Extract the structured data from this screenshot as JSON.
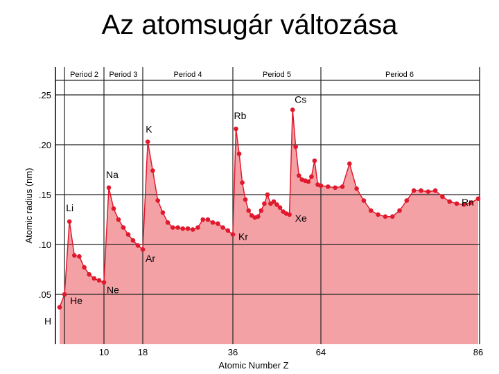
{
  "title": "Az atomsugár változása",
  "chart_data": {
    "type": "area",
    "xlabel": "Atomic Number Z",
    "ylabel": "Atomic radius (nm)",
    "xlim": [
      1,
      86
    ],
    "ylim": [
      0,
      0.28
    ],
    "xticks": [
      10,
      18,
      36,
      64,
      86
    ],
    "yticks": [
      0.05,
      0.1,
      0.15,
      0.2,
      0.25
    ],
    "ytick_labels": [
      ".05",
      ".10",
      ".15",
      ".20",
      ".25"
    ],
    "grid": "horizontal + vertical period boundaries",
    "periods": [
      {
        "label": "Period 2",
        "from": 2,
        "to": 10
      },
      {
        "label": "Period 3",
        "from": 10,
        "to": 18
      },
      {
        "label": "Period 4",
        "from": 18,
        "to": 36
      },
      {
        "label": "Period 5",
        "from": 36,
        "to": 64
      },
      {
        "label": "Period 6",
        "from": 64,
        "to": 86
      }
    ],
    "colors": {
      "fill": "#f4a1a6",
      "line": "#e0192d",
      "point": "#e0192d",
      "grid": "#222222"
    },
    "series": [
      {
        "x": [
          1,
          2,
          3,
          4,
          5,
          6,
          7,
          8,
          9,
          10,
          11,
          12,
          13,
          14,
          15,
          16,
          17,
          18,
          19,
          20,
          21,
          22,
          23,
          24,
          25,
          26,
          27,
          28,
          29,
          30,
          31,
          32,
          33,
          34,
          35,
          36,
          37,
          38,
          39,
          40,
          41,
          42,
          43,
          44,
          45,
          46,
          47,
          48,
          49,
          50,
          51,
          52,
          53,
          54,
          55,
          56,
          57,
          58,
          59,
          60,
          61,
          62,
          63,
          64,
          65,
          66,
          67,
          68,
          69,
          70,
          71,
          72,
          73,
          74,
          75,
          76,
          77,
          78,
          79,
          80,
          81,
          82,
          83,
          84,
          85,
          86
        ],
        "y": [
          0.037,
          0.05,
          0.123,
          0.089,
          0.088,
          0.077,
          0.07,
          0.066,
          0.064,
          0.062,
          0.157,
          0.136,
          0.125,
          0.117,
          0.11,
          0.104,
          0.099,
          0.095,
          0.203,
          0.174,
          0.144,
          0.132,
          0.122,
          0.117,
          0.117,
          0.116,
          0.116,
          0.115,
          0.117,
          0.125,
          0.125,
          0.122,
          0.121,
          0.117,
          0.114,
          0.11,
          0.216,
          0.191,
          0.162,
          0.145,
          0.134,
          0.129,
          0.127,
          0.128,
          0.134,
          0.141,
          0.15,
          0.141,
          0.143,
          0.14,
          0.137,
          0.133,
          0.131,
          0.13,
          0.235,
          0.198,
          0.169,
          0.165,
          0.164,
          0.163,
          0.168,
          0.184,
          0.16,
          0.159,
          0.158,
          0.157,
          0.158,
          0.181,
          0.156,
          0.144,
          0.134,
          0.13,
          0.128,
          0.128,
          0.134,
          0.144,
          0.154,
          0.154,
          0.153,
          0.154,
          0.148,
          0.143,
          0.141,
          0.14,
          0.142,
          0.146
        ]
      }
    ],
    "annotations": [
      {
        "text": "H",
        "z": 1
      },
      {
        "text": "He",
        "z": 2
      },
      {
        "text": "Li",
        "z": 3
      },
      {
        "text": "Ne",
        "z": 10
      },
      {
        "text": "Na",
        "z": 11
      },
      {
        "text": "Ar",
        "z": 18
      },
      {
        "text": "K",
        "z": 19
      },
      {
        "text": "Kr",
        "z": 36
      },
      {
        "text": "Rb",
        "z": 37
      },
      {
        "text": "Xe",
        "z": 54
      },
      {
        "text": "Cs",
        "z": 55
      },
      {
        "text": "Rn",
        "z": 86
      }
    ]
  }
}
